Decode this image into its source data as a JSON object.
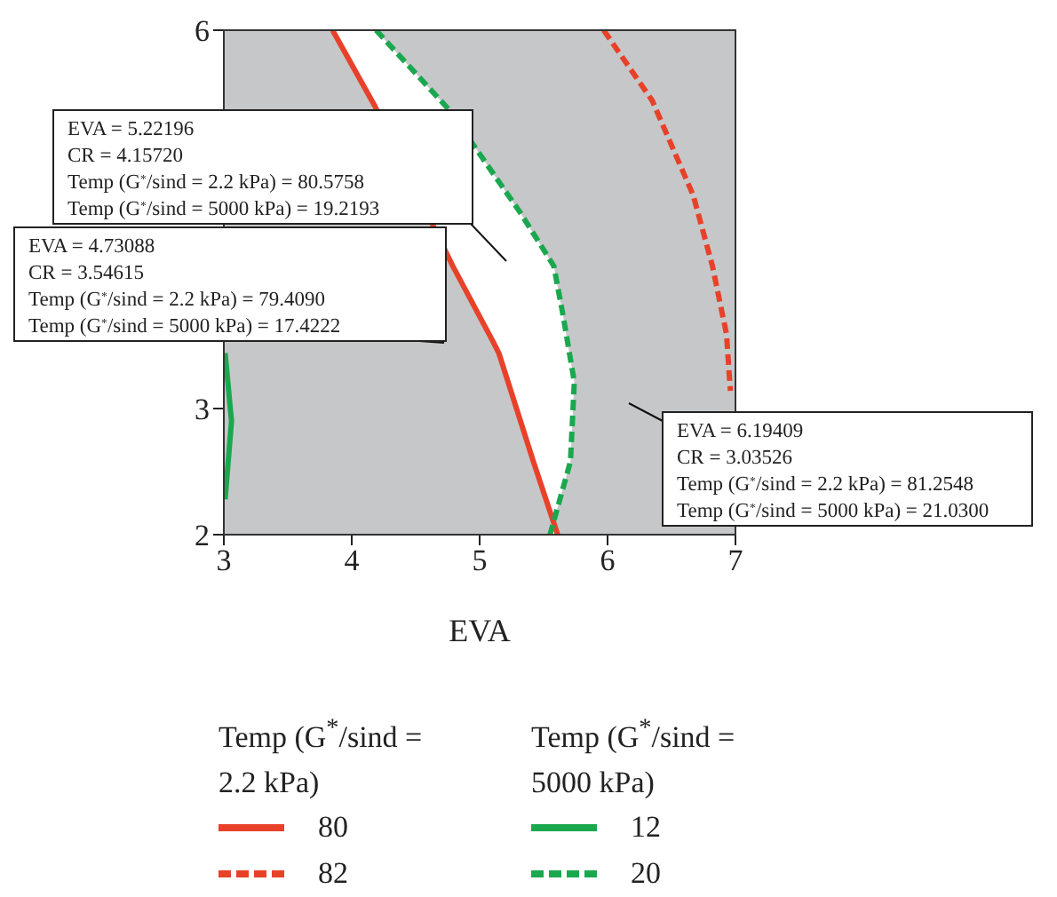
{
  "chart_data": {
    "type": "line",
    "xlabel": "EVA",
    "xlim": [
      3,
      7
    ],
    "xticks": [
      3,
      4,
      5,
      6,
      7
    ],
    "ylim": [
      2,
      6
    ],
    "yticks": [
      2,
      3,
      6
    ],
    "grid": false,
    "legend": "bottom",
    "marker": "none",
    "annotations": [
      "EVA = 5.22196\nCR = 4.15720\nTemp (G$^{*}$/sind = 2.2 kPa) = 80.5758\nTemp (G$^{*}$/sind = 5000 kPa) = 19.2193",
      "EVA = 4.73088\nCR = 3.54615\nTemp (G$^{*}$/sind = 2.2 kPa) = 79.4090\nTemp (G$^{*}$/sind = 5000 kPa) = 17.4222",
      "EVA = 6.19409\nCR = 3.03526\nTemp (G$^{*}$/sind = 2.2 kPa) = 81.2548\nTemp (G$^{*}$/sind = 5000 kPa) = 21.0300",
      "Temp (G$^{*}$/sind = 2.2 kPa)",
      "Temp (G$^{*}$/sind = 5000 kPa)"
    ],
    "series": [
      {
        "name": "80",
        "color": "#e8412a",
        "line_style": "solid",
        "x": [
          3.85,
          4.18,
          4.79,
          5.11,
          5.15,
          5.42,
          5.61
        ],
        "values": [
          6,
          5.4,
          4.13,
          3.52,
          3.44,
          2.58,
          2
        ]
      },
      {
        "name": "82",
        "color": "#e8412a",
        "line_style": "dashed",
        "x": [
          5.97,
          6.35,
          6.67,
          6.82,
          6.93,
          6.96
        ],
        "values": [
          6,
          5.44,
          4.69,
          4.13,
          3.59,
          3.14
        ]
      },
      {
        "name": "12",
        "color": "#1aa84f",
        "line_style": "solid",
        "x": [
          3.01,
          3.06,
          3.01
        ],
        "values": [
          3.44,
          2.9,
          2.28
        ]
      },
      {
        "name": "20",
        "color": "#1aa84f",
        "line_style": "dashed",
        "x": [
          4.19,
          4.76,
          5.32,
          5.58,
          5.65,
          5.74,
          5.71,
          5.55
        ],
        "values": [
          6,
          5.37,
          4.55,
          4.13,
          3.75,
          3.21,
          2.58,
          2
        ]
      }
    ]
  }
}
